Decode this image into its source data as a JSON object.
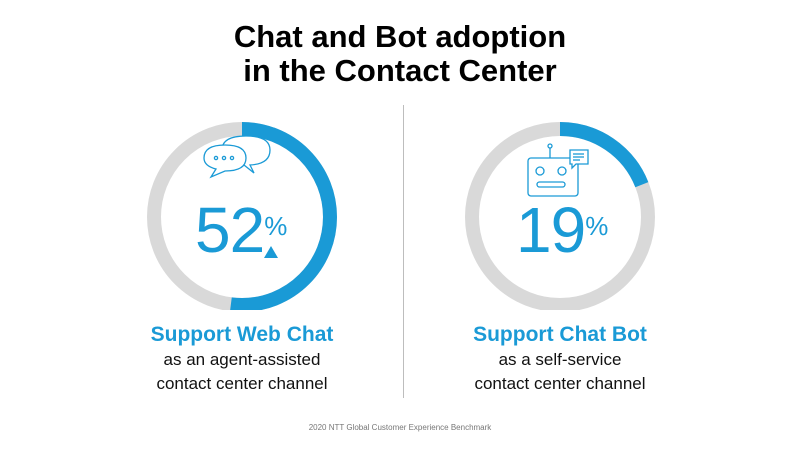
{
  "title_lines": [
    "Chat and Bot adoption",
    "in the Contact Center"
  ],
  "colors": {
    "accent": "#1a9ad6",
    "track": "#d9d9d9"
  },
  "panels": [
    {
      "value": 52,
      "number": "52",
      "percent_sign": "%",
      "trend": "up-triangle",
      "icon": "chat-bubbles-icon",
      "heading": "Support Web Chat",
      "sub_lines": [
        "as an agent-assisted",
        "contact center channel"
      ]
    },
    {
      "value": 19,
      "number": "19",
      "percent_sign": "%",
      "icon": "chatbot-robot-icon",
      "heading": "Support Chat Bot",
      "sub_lines": [
        "as a self-service",
        "contact center channel"
      ]
    }
  ],
  "footer": "2020 NTT Global Customer Experience Benchmark"
}
